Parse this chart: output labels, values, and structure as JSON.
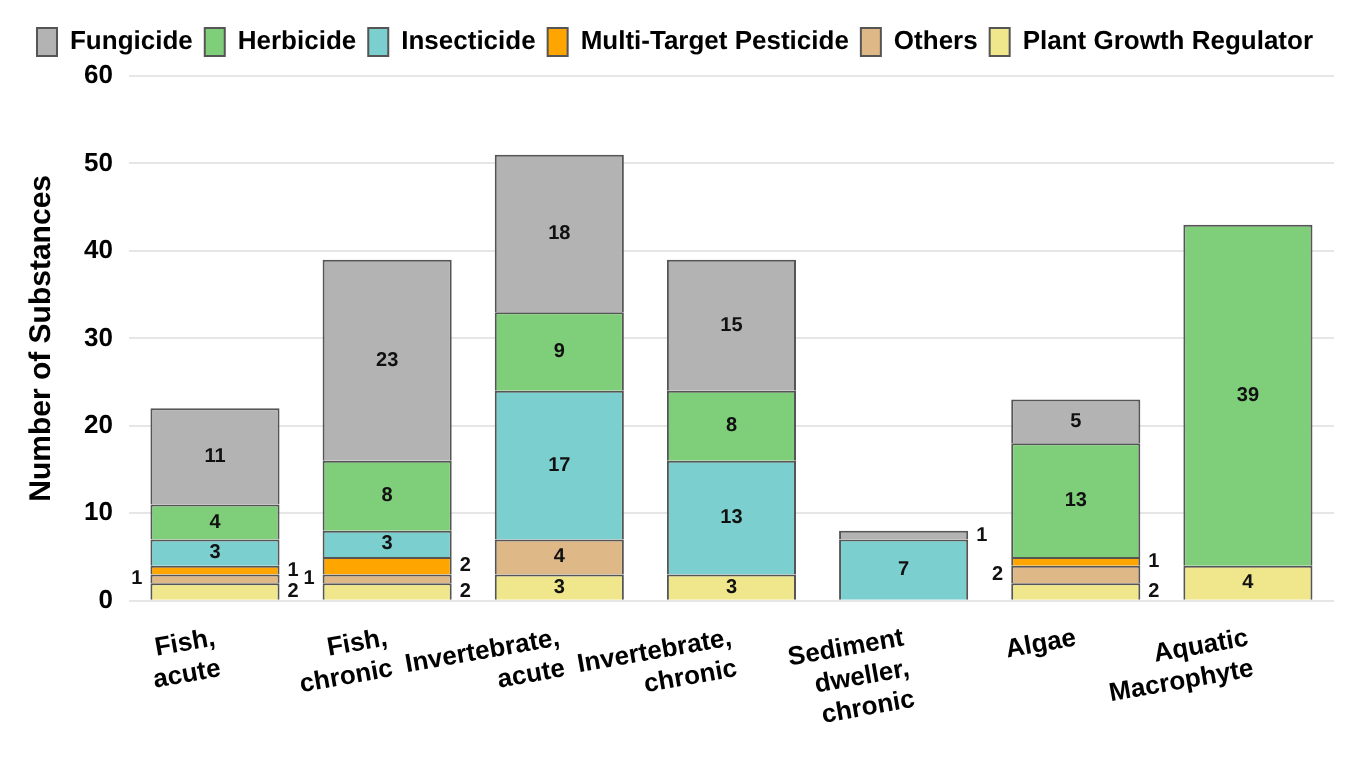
{
  "chart_data": {
    "type": "bar",
    "stacked": true,
    "ylabel": "Number of Substances",
    "categories": [
      "Fish,\nacute",
      "Fish,\nchronic",
      "Invertebrate,\nacute",
      "Invertebrate,\nchronic",
      "Sediment\ndweller,\nchronic",
      "Algae",
      "Aquatic\nMacrophyte"
    ],
    "series": [
      {
        "name": "Plant Growth Regulator",
        "color": "#f0e68c",
        "values": [
          2,
          2,
          3,
          3,
          0,
          2,
          4
        ],
        "value_labels": [
          "2",
          "2",
          "3",
          "3",
          null,
          "2",
          "4"
        ]
      },
      {
        "name": "Others",
        "color": "#deb887",
        "values": [
          1,
          1,
          4,
          0,
          0,
          2,
          0
        ],
        "value_labels": [
          "1",
          "1",
          "4",
          null,
          null,
          "2",
          null
        ]
      },
      {
        "name": "Multi-Target Pesticide",
        "color": "#ffa500",
        "values": [
          1,
          2,
          0,
          0,
          0,
          1,
          0
        ],
        "value_labels": [
          "1",
          "2",
          null,
          null,
          null,
          "1",
          null
        ]
      },
      {
        "name": "Insecticide",
        "color": "#7ccfcf",
        "values": [
          3,
          3,
          17,
          13,
          7,
          0,
          0
        ],
        "value_labels": [
          "3",
          "3",
          "17",
          "13",
          "7",
          null,
          null
        ]
      },
      {
        "name": "Herbicide",
        "color": "#7fcf7a",
        "values": [
          4,
          8,
          9,
          8,
          0,
          13,
          39
        ],
        "value_labels": [
          "4",
          "8",
          "9",
          "8",
          null,
          "13",
          "39"
        ]
      },
      {
        "name": "Fungicide",
        "color": "#b3b3b3",
        "values": [
          11,
          23,
          18,
          15,
          1,
          5,
          0
        ],
        "value_labels": [
          "11",
          "23",
          "18",
          "15",
          "1",
          "5",
          null
        ]
      }
    ],
    "ylim": [
      0,
      60
    ],
    "yticks": [
      0,
      10,
      20,
      30,
      40,
      50,
      60
    ],
    "grid": "y",
    "legend": "top"
  }
}
